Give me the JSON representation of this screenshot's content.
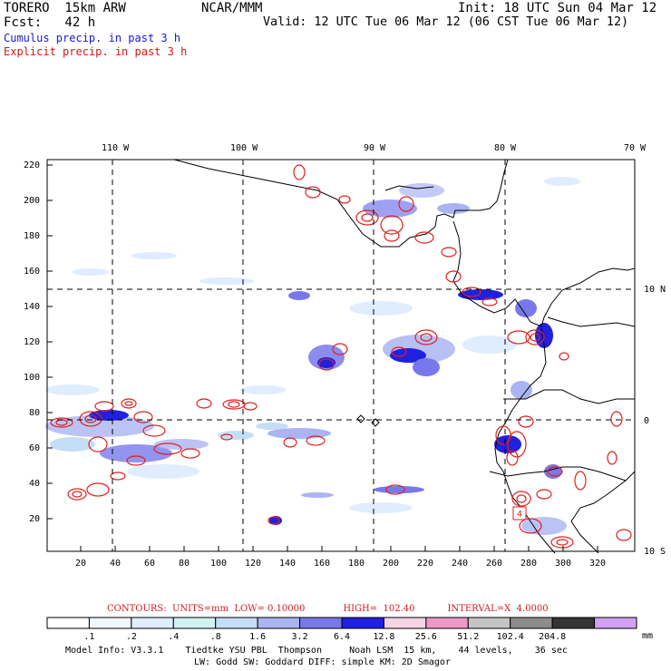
{
  "header": {
    "model": "TORERO  15km ARW",
    "center": "NCAR/MMM",
    "init": "Init: 18 UTC Sun 04 Mar 12",
    "fcst": "Fcst:   42 h",
    "valid": "Valid: 12 UTC Tue 06 Mar 12 (06 CST Tue 06 Mar 12)",
    "legend_cumulus": "Cumulus precip. in past 3 h",
    "legend_explicit": "Explicit precip. in past 3 h"
  },
  "map": {
    "top_lon_labels": [
      "110 W",
      "100 W",
      "90 W",
      "80 W",
      "70 W"
    ],
    "right_lat_labels": [
      "10 N",
      "0",
      "10 S"
    ],
    "y_ticks": [
      "220",
      "200",
      "180",
      "160",
      "140",
      "120",
      "100",
      "80",
      "60",
      "40",
      "20"
    ],
    "x_ticks": [
      "20",
      "40",
      "60",
      "80",
      "100",
      "120",
      "140",
      "160",
      "180",
      "200",
      "220",
      "240",
      "260",
      "280",
      "300",
      "320"
    ],
    "box_label": "4"
  },
  "contour_info": {
    "units": "CONTOURS:  UNITS=mm  LOW= 0.10000",
    "high": "HIGH=  102.40",
    "interval": "INTERVAL=X  4.0000"
  },
  "colorbar": {
    "colors": [
      "#ffffff",
      "#f0f6ff",
      "#e0ecff",
      "#d2f2f2",
      "#c6ddf6",
      "#aab4f2",
      "#7878ec",
      "#2020e0",
      "#f6d4e4",
      "#ee98c6",
      "#c4c4c4",
      "#8c8c8c",
      "#343434",
      "#d2a0f4"
    ],
    "labels": [
      ".1",
      ".2",
      ".4",
      ".8",
      "1.6",
      "3.2",
      "6.4",
      "12.8",
      "25.6",
      "51.2",
      "102.4",
      "204.8"
    ],
    "unit": "mm"
  },
  "footer": {
    "line1": "Model Info: V3.3.1    Tiedtke YSU PBL  Thompson     Noah LSM  15 km,    44 levels,    36 sec",
    "line2": "LW: Godd SW: Goddard DIFF: simple KM: 2D Smagor"
  }
}
